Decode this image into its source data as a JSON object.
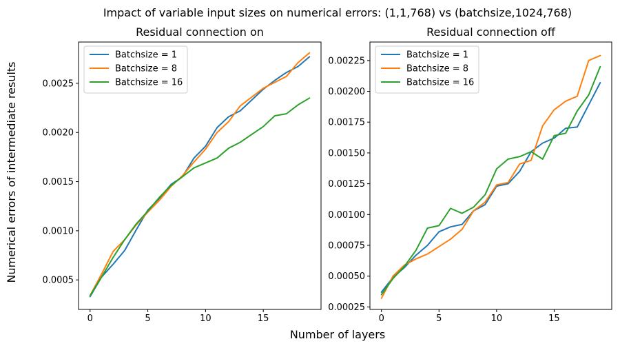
{
  "figure": {
    "title": "Impact of variable input sizes on numerical errors: (1,1,768) vs (batchsize,1024,768)",
    "xlabel": "Number of layers",
    "ylabel": "Numerical errors of intermediate results"
  },
  "chart_data": [
    {
      "type": "line",
      "title": "Residual connection on",
      "xlabel": "",
      "ylabel": "",
      "x": [
        0,
        1,
        2,
        3,
        4,
        5,
        6,
        7,
        8,
        9,
        10,
        11,
        12,
        13,
        14,
        15,
        16,
        17,
        18,
        19
      ],
      "xlim": [
        -1.0,
        20.0
      ],
      "ylim": [
        0.0002,
        0.00292
      ],
      "xticks": [
        0,
        5,
        10,
        15
      ],
      "xtick_labels": [
        "0",
        "5",
        "10",
        "15"
      ],
      "yticks": [
        0.0005,
        0.001,
        0.0015,
        0.002,
        0.0025
      ],
      "ytick_labels": [
        "0.0005",
        "0.0010",
        "0.0015",
        "0.0020",
        "0.0025"
      ],
      "legend": "upper-left",
      "grid": false,
      "series": [
        {
          "name": "Batchsize = 1",
          "color": "#1f77b4",
          "values": [
            0.00033,
            0.00053,
            0.00066,
            0.0008,
            0.00101,
            0.00121,
            0.00133,
            0.00147,
            0.00155,
            0.00174,
            0.00186,
            0.00205,
            0.00216,
            0.00222,
            0.00233,
            0.00244,
            0.00253,
            0.00261,
            0.00267,
            0.00277
          ]
        },
        {
          "name": "Batchsize = 8",
          "color": "#ff7f0e",
          "values": [
            0.00034,
            0.00056,
            0.00079,
            0.00091,
            0.00106,
            0.00119,
            0.00131,
            0.00145,
            0.00156,
            0.0017,
            0.00183,
            0.002,
            0.00211,
            0.00227,
            0.00236,
            0.00245,
            0.00251,
            0.00257,
            0.00271,
            0.00281
          ]
        },
        {
          "name": "Batchsize = 16",
          "color": "#2ca02c",
          "values": [
            0.00034,
            0.00053,
            0.00073,
            0.00091,
            0.00107,
            0.0012,
            0.00134,
            0.00146,
            0.00155,
            0.00164,
            0.00169,
            0.00174,
            0.00184,
            0.0019,
            0.00198,
            0.00206,
            0.00217,
            0.00219,
            0.00228,
            0.00235
          ]
        }
      ]
    },
    {
      "type": "line",
      "title": "Residual connection off",
      "xlabel": "",
      "ylabel": "",
      "x": [
        0,
        1,
        2,
        3,
        4,
        5,
        6,
        7,
        8,
        9,
        10,
        11,
        12,
        13,
        14,
        15,
        16,
        17,
        18,
        19
      ],
      "xlim": [
        -1.0,
        20.0
      ],
      "ylim": [
        0.00023,
        0.0024
      ],
      "xticks": [
        0,
        5,
        10,
        15
      ],
      "xtick_labels": [
        "0",
        "5",
        "10",
        "15"
      ],
      "yticks": [
        0.00025,
        0.0005,
        0.00075,
        0.001,
        0.00125,
        0.0015,
        0.00175,
        0.002,
        0.00225
      ],
      "ytick_labels": [
        "0.00025",
        "0.00050",
        "0.00075",
        "0.00100",
        "0.00125",
        "0.00150",
        "0.00175",
        "0.00200",
        "0.00225"
      ],
      "legend": "upper-left",
      "grid": false,
      "series": [
        {
          "name": "Batchsize = 1",
          "color": "#1f77b4",
          "values": [
            0.00037,
            0.00049,
            0.00057,
            0.00067,
            0.00075,
            0.00086,
            0.0009,
            0.00092,
            0.00103,
            0.00108,
            0.00123,
            0.00125,
            0.00135,
            0.00151,
            0.00158,
            0.00162,
            0.0017,
            0.00171,
            0.00189,
            0.00207
          ]
        },
        {
          "name": "Batchsize = 8",
          "color": "#ff7f0e",
          "values": [
            0.00032,
            0.0005,
            0.00059,
            0.00064,
            0.00068,
            0.00074,
            0.0008,
            0.00088,
            0.00103,
            0.0011,
            0.00124,
            0.00126,
            0.00141,
            0.00144,
            0.00172,
            0.00185,
            0.00192,
            0.00196,
            0.00225,
            0.00229
          ]
        },
        {
          "name": "Batchsize = 16",
          "color": "#2ca02c",
          "values": [
            0.00035,
            0.00048,
            0.00058,
            0.00071,
            0.00089,
            0.00091,
            0.00105,
            0.00101,
            0.00106,
            0.00116,
            0.00137,
            0.00145,
            0.00147,
            0.00151,
            0.00145,
            0.00164,
            0.00166,
            0.00184,
            0.00197,
            0.0022
          ]
        }
      ]
    }
  ]
}
